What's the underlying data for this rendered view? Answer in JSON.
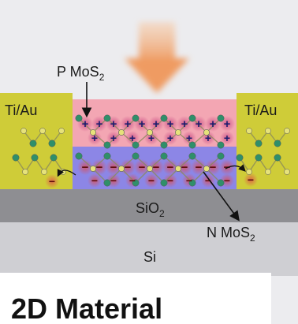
{
  "labels": {
    "p_layer": "P MoS",
    "p_layer_sub": "2",
    "n_layer": "N MoS",
    "n_layer_sub": "2",
    "contact_left": "Ti/Au",
    "contact_right": "Ti/Au",
    "oxide": "SiO",
    "oxide_sub": "2",
    "substrate": "Si"
  },
  "charges": {
    "hole": "+",
    "electron": "−"
  },
  "caption": "2D Material",
  "colors": {
    "background": "#ececef",
    "p_region": "#f3a6b3",
    "n_region": "#8c86e6",
    "contact": "#cfcc38",
    "oxide": "#8e8e92",
    "substrate": "#cfcfd3",
    "light_arrow": "#f0b080",
    "atom_metal": "#2f8f6a",
    "atom_sulfur": "#e6e27a"
  },
  "icons": {
    "light": "light-arrow-icon",
    "pointer": "pointer-arrow-icon"
  }
}
